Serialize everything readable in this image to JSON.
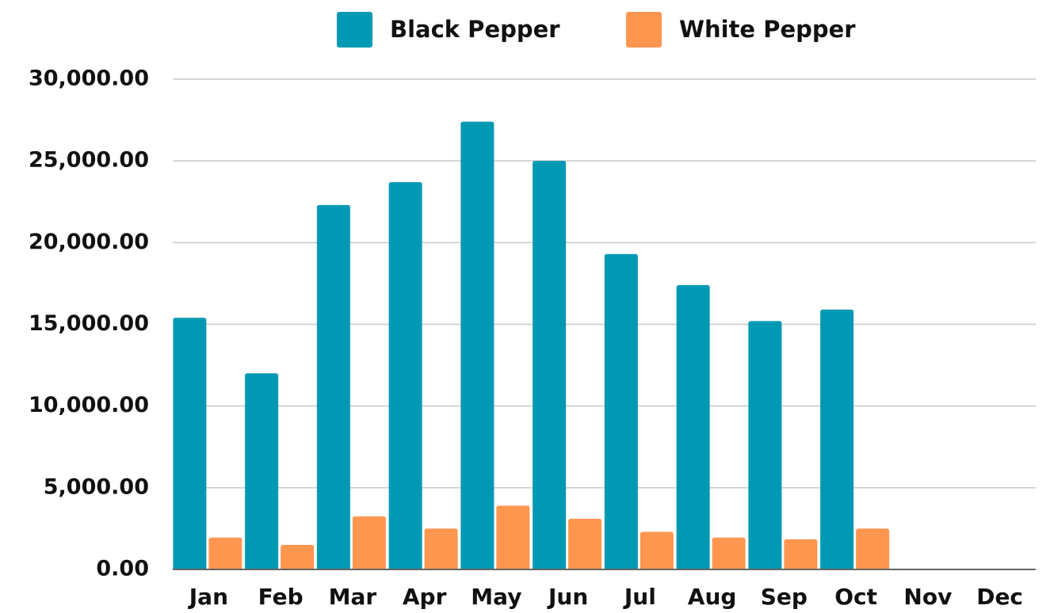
{
  "chart_data": {
    "type": "bar",
    "categories": [
      "Jan",
      "Feb",
      "Mar",
      "Apr",
      "May",
      "Jun",
      "Jul",
      "Aug",
      "Sep",
      "Oct",
      "Nov",
      "Dec"
    ],
    "series": [
      {
        "name": "Black Pepper",
        "color": "#0099b4",
        "values": [
          15400,
          12000,
          22300,
          23700,
          27400,
          25000,
          19300,
          17400,
          15200,
          15900,
          null,
          null
        ]
      },
      {
        "name": "White Pepper",
        "color": "#ff9650",
        "values": [
          1950,
          1500,
          3250,
          2500,
          3900,
          3100,
          2300,
          1950,
          1850,
          2500,
          null,
          null
        ]
      }
    ],
    "ylim": [
      0,
      30000
    ],
    "yticks": [
      {
        "value": 0,
        "label": "0.00"
      },
      {
        "value": 5000,
        "label": "5,000.00"
      },
      {
        "value": 10000,
        "label": "10,000.00"
      },
      {
        "value": 15000,
        "label": "15,000.00"
      },
      {
        "value": 20000,
        "label": "20,000.00"
      },
      {
        "value": 25000,
        "label": "25,000.00"
      },
      {
        "value": 30000,
        "label": "30,000.00"
      }
    ],
    "grid": true,
    "legend": "top"
  }
}
